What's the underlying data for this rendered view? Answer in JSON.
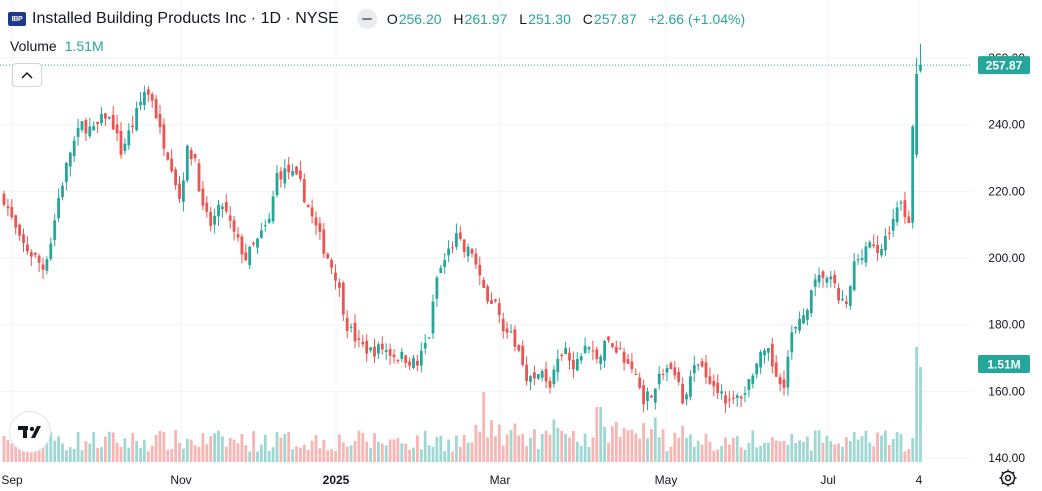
{
  "header": {
    "logo_text": "IBP",
    "title": "Installed Building Products Inc · 1D · NYSE",
    "ohlc": {
      "o_label": "O",
      "o": "256.20",
      "h_label": "H",
      "h": "261.97",
      "l_label": "L",
      "l": "251.30",
      "c_label": "C",
      "c": "257.87",
      "change": "+2.66 (+1.04%)"
    }
  },
  "volume": {
    "label": "Volume",
    "value": "1.51M"
  },
  "price_badge": "257.87",
  "volume_badge": "1.51M",
  "colors": {
    "up": "#26a69a",
    "down": "#ef5350",
    "up_volume": "#9fd8d2",
    "down_volume": "#f7b5b4",
    "grid": "#f0f3fa"
  },
  "chart_data": {
    "type": "candlestick",
    "y_axis": {
      "ticks": [
        "260.00",
        "240.00",
        "220.00",
        "200.00",
        "180.00",
        "160.00",
        "140.00"
      ],
      "range": [
        140,
        262
      ]
    },
    "x_axis": {
      "ticks": [
        "Sep",
        "Nov",
        "2025",
        "Mar",
        "May",
        "Jul",
        "4"
      ]
    },
    "last_price": 257.87,
    "price_path": [
      [
        0,
        218
      ],
      [
        4,
        205
      ],
      [
        8,
        200
      ],
      [
        10,
        197
      ],
      [
        12,
        205
      ],
      [
        14,
        218
      ],
      [
        17,
        232
      ],
      [
        20,
        240
      ],
      [
        23,
        238
      ],
      [
        26,
        243
      ],
      [
        28,
        240
      ],
      [
        30,
        232
      ],
      [
        33,
        240
      ],
      [
        36,
        250
      ],
      [
        38,
        248
      ],
      [
        40,
        238
      ],
      [
        43,
        228
      ],
      [
        45,
        218
      ],
      [
        47,
        232
      ],
      [
        49,
        230
      ],
      [
        51,
        214
      ],
      [
        53,
        210
      ],
      [
        56,
        216
      ],
      [
        59,
        207
      ],
      [
        62,
        200
      ],
      [
        65,
        205
      ],
      [
        68,
        211
      ],
      [
        70,
        225
      ],
      [
        73,
        226
      ],
      [
        76,
        222
      ],
      [
        79,
        212
      ],
      [
        82,
        203
      ],
      [
        85,
        195
      ],
      [
        88,
        180
      ],
      [
        91,
        174
      ],
      [
        94,
        172
      ],
      [
        97,
        173
      ],
      [
        100,
        171
      ],
      [
        103,
        170
      ],
      [
        106,
        168
      ],
      [
        109,
        177
      ],
      [
        111,
        194
      ],
      [
        114,
        202
      ],
      [
        116,
        206
      ],
      [
        118,
        202
      ],
      [
        120,
        202
      ],
      [
        122,
        193
      ],
      [
        124,
        188
      ],
      [
        126,
        186
      ],
      [
        128,
        180
      ],
      [
        130,
        176
      ],
      [
        132,
        172
      ],
      [
        134,
        165
      ],
      [
        136,
        163
      ],
      [
        138,
        166
      ],
      [
        140,
        162
      ],
      [
        142,
        168
      ],
      [
        144,
        172
      ],
      [
        146,
        166
      ],
      [
        149,
        174
      ],
      [
        152,
        170
      ],
      [
        155,
        175
      ],
      [
        158,
        172
      ],
      [
        160,
        167
      ],
      [
        162,
        165
      ],
      [
        164,
        158
      ],
      [
        166,
        160
      ],
      [
        168,
        164
      ],
      [
        170,
        167
      ],
      [
        172,
        165
      ],
      [
        174,
        158
      ],
      [
        176,
        164
      ],
      [
        178,
        168
      ],
      [
        180,
        166
      ],
      [
        182,
        162
      ],
      [
        184,
        160
      ],
      [
        186,
        156
      ],
      [
        188,
        158
      ],
      [
        190,
        160
      ],
      [
        192,
        166
      ],
      [
        194,
        170
      ],
      [
        196,
        171
      ],
      [
        198,
        165
      ],
      [
        200,
        163
      ],
      [
        202,
        177
      ],
      [
        204,
        180
      ],
      [
        206,
        186
      ],
      [
        208,
        192
      ],
      [
        210,
        195
      ],
      [
        212,
        193
      ],
      [
        214,
        188
      ],
      [
        216,
        185
      ],
      [
        218,
        198
      ],
      [
        220,
        202
      ],
      [
        222,
        205
      ],
      [
        224,
        200
      ],
      [
        226,
        206
      ],
      [
        228,
        212
      ],
      [
        230,
        216
      ],
      [
        232,
        212
      ],
      [
        233,
        238
      ],
      [
        234,
        254
      ],
      [
        235,
        257.87
      ]
    ],
    "volume_mode": "relative"
  }
}
